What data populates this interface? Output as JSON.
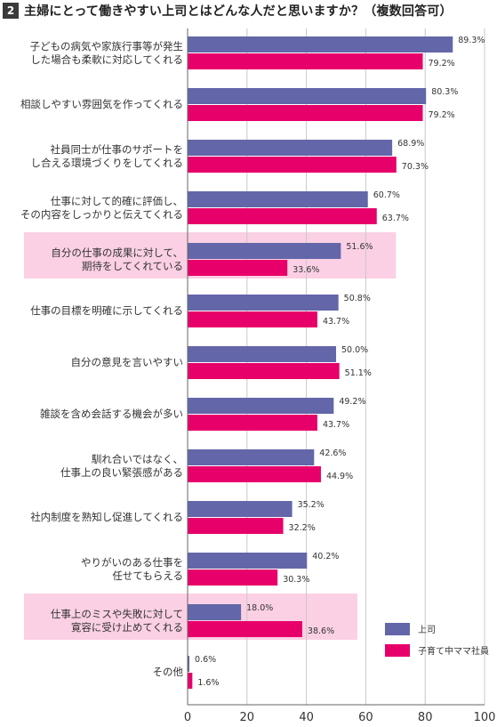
{
  "header": {
    "number": "2",
    "title": "主婦にとって働きやすい上司とはどんな人だと思いますか？（複数回答可）"
  },
  "colors": {
    "series_a": "#6366a8",
    "series_b": "#e8006a",
    "highlight": "#fbd0e4",
    "grid": "#c8c8c8",
    "axis": "#666666"
  },
  "chart_data": {
    "type": "bar",
    "orientation": "horizontal",
    "categories": [
      [
        "子どもの病気や家族行事等が発生",
        "した場合も柔軟に対応してくれる"
      ],
      [
        "相談しやすい雰囲気を作ってくれる"
      ],
      [
        "社員同士が仕事のサポートを",
        "し合える環境づくりをしてくれる"
      ],
      [
        "仕事に対して的確に評価し、",
        "その内容をしっかりと伝えてくれる"
      ],
      [
        "自分の仕事の成果に対して、",
        "期待をしてくれている"
      ],
      [
        "仕事の目標を明確に示してくれる"
      ],
      [
        "自分の意見を言いやすい"
      ],
      [
        "雑談を含め会話する機会が多い"
      ],
      [
        "馴れ合いではなく、",
        "仕事上の良い緊張感がある"
      ],
      [
        "社内制度を熟知し促進してくれる"
      ],
      [
        "やりがいのある仕事を",
        "任せてもらえる"
      ],
      [
        "仕事上のミスや失敗に対して",
        "寛容に受け止めてくれる"
      ],
      [
        "その他"
      ]
    ],
    "highlighted": [
      4,
      11
    ],
    "series": [
      {
        "name": "上司",
        "values": [
          89.3,
          80.3,
          68.9,
          60.7,
          51.6,
          50.8,
          50.0,
          49.2,
          42.6,
          35.2,
          40.2,
          18.0,
          0.6
        ]
      },
      {
        "name": "子育て中ママ社員",
        "values": [
          79.2,
          79.2,
          70.3,
          63.7,
          33.6,
          43.7,
          51.1,
          43.7,
          44.9,
          32.2,
          30.3,
          38.6,
          1.6
        ]
      }
    ],
    "value_labels": [
      [
        "89.3%",
        "80.3%",
        "68.9%",
        "60.7%",
        "51.6%",
        "50.8%",
        "50.0%",
        "49.2%",
        "42.6%",
        "35.2%",
        "40.2%",
        "18.0%",
        "0.6%"
      ],
      [
        "79.2%",
        "79.2%",
        "70.3%",
        "63.7%",
        "33.6%",
        "43.7%",
        "51.1%",
        "43.7%",
        "44.9%",
        "32.2%",
        "30.3%",
        "38.6%",
        "1.6%"
      ]
    ],
    "xlim": [
      0,
      100
    ],
    "xticks": [
      "0",
      "20",
      "40",
      "60",
      "80",
      "100"
    ],
    "grid": true,
    "legend_position": "bottom-right"
  }
}
